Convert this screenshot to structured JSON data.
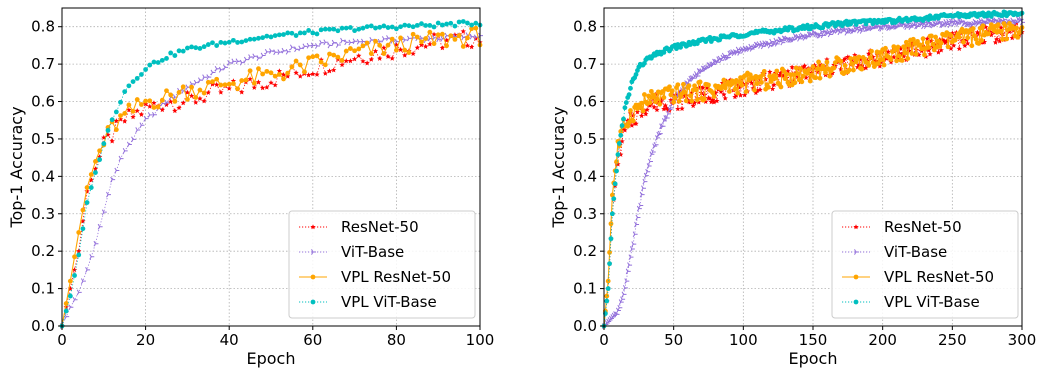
{
  "chart_data": [
    {
      "type": "line",
      "xlabel": "Epoch",
      "ylabel": "Top-1 Accuracy",
      "xlim": [
        0,
        100
      ],
      "ylim": [
        0,
        0.85
      ],
      "xticks": [
        "0",
        "20",
        "40",
        "60",
        "80",
        "100"
      ],
      "yticks": [
        "0.0",
        "0.1",
        "0.2",
        "0.3",
        "0.4",
        "0.5",
        "0.6",
        "0.7",
        "0.8"
      ],
      "grid": true,
      "legend_position": "lower-right",
      "series": [
        {
          "name": "ResNet-50",
          "color": "#ff0000",
          "marker": "star",
          "x": [
            0,
            2,
            4,
            6,
            8,
            10,
            12,
            15,
            20,
            25,
            30,
            35,
            40,
            50,
            60,
            70,
            80,
            90,
            100
          ],
          "y": [
            0.0,
            0.1,
            0.2,
            0.36,
            0.42,
            0.48,
            0.51,
            0.55,
            0.58,
            0.6,
            0.6,
            0.62,
            0.63,
            0.66,
            0.69,
            0.72,
            0.74,
            0.76,
            0.77
          ]
        },
        {
          "name": "ViT-Base",
          "color": "#9370db",
          "marker": "tri",
          "x": [
            0,
            2,
            4,
            6,
            8,
            10,
            12,
            15,
            20,
            25,
            30,
            35,
            40,
            50,
            60,
            70,
            80,
            90,
            100
          ],
          "y": [
            0.0,
            0.05,
            0.09,
            0.15,
            0.22,
            0.31,
            0.39,
            0.47,
            0.55,
            0.6,
            0.64,
            0.67,
            0.7,
            0.73,
            0.75,
            0.76,
            0.765,
            0.77,
            0.775
          ]
        },
        {
          "name": "VPL ResNet-50",
          "color": "#ffa500",
          "marker": "dot",
          "x": [
            0,
            2,
            4,
            6,
            8,
            10,
            12,
            15,
            20,
            25,
            30,
            35,
            40,
            50,
            60,
            70,
            80,
            90,
            100
          ],
          "y": [
            0.0,
            0.12,
            0.25,
            0.37,
            0.44,
            0.49,
            0.53,
            0.56,
            0.6,
            0.61,
            0.63,
            0.64,
            0.65,
            0.67,
            0.7,
            0.73,
            0.75,
            0.765,
            0.775
          ]
        },
        {
          "name": "VPL ViT-Base",
          "color": "#00bfbf",
          "marker": "dot",
          "x": [
            0,
            2,
            4,
            6,
            8,
            10,
            12,
            15,
            20,
            25,
            30,
            35,
            40,
            50,
            60,
            70,
            80,
            90,
            100
          ],
          "y": [
            0.0,
            0.08,
            0.19,
            0.33,
            0.41,
            0.49,
            0.55,
            0.63,
            0.69,
            0.72,
            0.74,
            0.75,
            0.76,
            0.775,
            0.785,
            0.795,
            0.8,
            0.805,
            0.81
          ]
        }
      ]
    },
    {
      "type": "line",
      "xlabel": "Epoch",
      "ylabel": "Top-1 Accuracy",
      "xlim": [
        0,
        300
      ],
      "ylim": [
        0,
        0.85
      ],
      "xticks": [
        "0",
        "50",
        "100",
        "150",
        "200",
        "250",
        "300"
      ],
      "yticks": [
        "0.0",
        "0.1",
        "0.2",
        "0.3",
        "0.4",
        "0.5",
        "0.6",
        "0.7",
        "0.8"
      ],
      "grid": true,
      "legend_position": "lower-right",
      "series": [
        {
          "name": "ResNet-50",
          "color": "#ff0000",
          "marker": "star",
          "x": [
            0,
            3,
            6,
            10,
            15,
            20,
            30,
            40,
            50,
            75,
            100,
            125,
            150,
            175,
            200,
            225,
            250,
            275,
            300
          ],
          "y": [
            0.0,
            0.1,
            0.3,
            0.45,
            0.52,
            0.55,
            0.59,
            0.6,
            0.6,
            0.62,
            0.64,
            0.66,
            0.68,
            0.7,
            0.72,
            0.74,
            0.76,
            0.78,
            0.79
          ]
        },
        {
          "name": "ViT-Base",
          "color": "#9370db",
          "marker": "tri",
          "x": [
            0,
            5,
            10,
            15,
            20,
            25,
            30,
            35,
            40,
            50,
            60,
            75,
            100,
            125,
            150,
            175,
            200,
            250,
            300
          ],
          "y": [
            0.0,
            0.02,
            0.04,
            0.1,
            0.2,
            0.31,
            0.4,
            0.47,
            0.52,
            0.6,
            0.65,
            0.7,
            0.74,
            0.76,
            0.78,
            0.79,
            0.8,
            0.81,
            0.815
          ]
        },
        {
          "name": "VPL ResNet-50",
          "color": "#ffa500",
          "marker": "dot",
          "x": [
            0,
            3,
            6,
            10,
            15,
            20,
            30,
            40,
            50,
            75,
            100,
            125,
            150,
            175,
            200,
            225,
            250,
            275,
            300
          ],
          "y": [
            0.0,
            0.12,
            0.35,
            0.48,
            0.54,
            0.57,
            0.6,
            0.61,
            0.62,
            0.63,
            0.65,
            0.66,
            0.68,
            0.7,
            0.72,
            0.745,
            0.765,
            0.78,
            0.795
          ]
        },
        {
          "name": "VPL ViT-Base",
          "color": "#00bfbf",
          "marker": "dot",
          "x": [
            0,
            3,
            6,
            10,
            15,
            20,
            25,
            30,
            40,
            50,
            75,
            100,
            125,
            150,
            175,
            200,
            225,
            250,
            300
          ],
          "y": [
            0.0,
            0.1,
            0.3,
            0.46,
            0.58,
            0.65,
            0.69,
            0.71,
            0.73,
            0.745,
            0.765,
            0.78,
            0.79,
            0.8,
            0.81,
            0.815,
            0.82,
            0.83,
            0.835
          ]
        }
      ]
    }
  ]
}
